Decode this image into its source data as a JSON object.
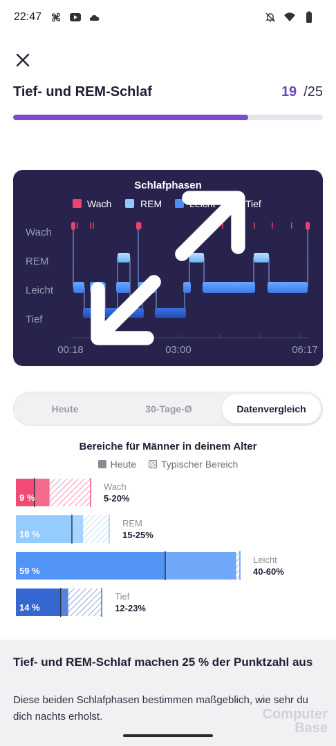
{
  "status": {
    "time": "22:47"
  },
  "header": {
    "title": "Tief- und REM-Schlaf",
    "current": "19",
    "total": "/25",
    "progress": 0.76
  },
  "chart": {
    "title": "Schlafphasen",
    "legend": [
      {
        "label": "Wach",
        "color": "#f0416e"
      },
      {
        "label": "REM",
        "color": "#8ec9ff"
      },
      {
        "label": "Leicht",
        "color": "#4a8ff7"
      },
      {
        "label": "Tief",
        "color": "#2a5fcf"
      }
    ],
    "y_labels": [
      "Wach",
      "REM",
      "Leicht",
      "Tief"
    ],
    "x_labels": [
      "00:18",
      "03:00",
      "06:17"
    ]
  },
  "tabs": [
    {
      "label": "Heute"
    },
    {
      "label": "30-Tage-Ø"
    },
    {
      "label": "Datenvergleich",
      "active": true
    }
  ],
  "comparison": {
    "title": "Bereiche für Männer in deinem Alter",
    "legend_today": "Heute",
    "legend_typical": "Typischer Bereich",
    "rows": [
      {
        "pct_label": "9 %",
        "name": "Wach",
        "range": "5-20%",
        "value": 9,
        "min": 5,
        "max": 20,
        "color": "#f0416e"
      },
      {
        "pct_label": "18 %",
        "name": "REM",
        "range": "15-25%",
        "value": 18,
        "min": 15,
        "max": 25,
        "color": "#8ec9ff"
      },
      {
        "pct_label": "59 %",
        "name": "Leicht",
        "range": "40-60%",
        "value": 59,
        "min": 40,
        "max": 60,
        "color": "#4a8ff7"
      },
      {
        "pct_label": "14 %",
        "name": "Tief",
        "range": "12-23%",
        "value": 14,
        "min": 12,
        "max": 23,
        "color": "#2a5fcf"
      }
    ]
  },
  "info": {
    "title": "Tief- und REM-Schlaf machen 25 % der Punktzahl aus",
    "text": "Diese beiden Schlafphasen bestimmen maßgeblich, wie sehr du dich nachts erholst."
  },
  "watermark": {
    "line1": "Computer",
    "line2": "Base"
  }
}
